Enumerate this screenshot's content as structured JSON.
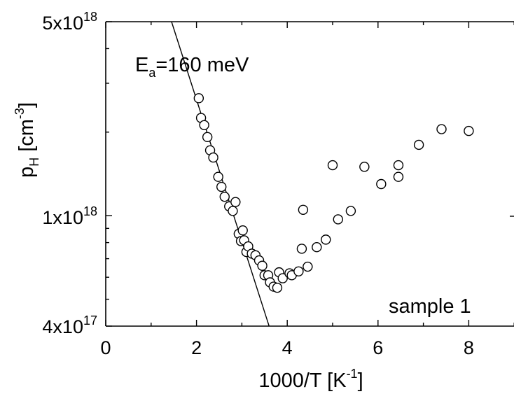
{
  "chart_data": {
    "type": "scatter",
    "title": "",
    "xlabel": {
      "main": "1000/T [K",
      "sup": "-1",
      "close": "]"
    },
    "ylabel": {
      "main": "p",
      "sub": "H",
      "rest": " [cm",
      "sup": "-3",
      "close": "]"
    },
    "x_scale": "linear",
    "y_scale": "log",
    "xlim": [
      0,
      9
    ],
    "ylim": [
      4e+17,
      5e+18
    ],
    "x_ticks": [
      "0",
      "2",
      "4",
      "6",
      "8"
    ],
    "y_ticks": [
      {
        "value": 5e+18,
        "mant": "5x10",
        "exp": "18"
      },
      {
        "value": 1e+18,
        "mant": "1x10",
        "exp": "18"
      },
      {
        "value": 4e+17,
        "mant": "4x10",
        "exp": "17"
      }
    ],
    "series": [
      {
        "marker": "open-circle",
        "points": [
          [
            2.05,
            2.65e+18
          ],
          [
            2.1,
            2.25e+18
          ],
          [
            2.17,
            2.12e+18
          ],
          [
            2.24,
            1.92e+18
          ],
          [
            2.3,
            1.72e+18
          ],
          [
            2.37,
            1.62e+18
          ],
          [
            2.48,
            1.38e+18
          ],
          [
            2.55,
            1.27e+18
          ],
          [
            2.62,
            1.17e+18
          ],
          [
            2.72,
            1.08e+18
          ],
          [
            2.8,
            1.04e+18
          ],
          [
            2.86,
            1.12e+18
          ],
          [
            2.93,
            8.6e+17
          ],
          [
            2.98,
            8.1e+17
          ],
          [
            3.02,
            8.85e+17
          ],
          [
            3.05,
            8.15e+17
          ],
          [
            3.1,
            7.4e+17
          ],
          [
            3.14,
            7.75e+17
          ],
          [
            3.22,
            7.3e+17
          ],
          [
            3.3,
            7.2e+17
          ],
          [
            3.38,
            6.9e+17
          ],
          [
            3.45,
            6.6e+17
          ],
          [
            3.5,
            6.1e+17
          ],
          [
            3.58,
            6.1e+17
          ],
          [
            3.62,
            5.75e+17
          ],
          [
            3.7,
            5.55e+17
          ],
          [
            3.78,
            5.5e+17
          ],
          [
            3.82,
            6.25e+17
          ],
          [
            3.9,
            5.95e+17
          ],
          [
            4.05,
            6.2e+17
          ],
          [
            4.1,
            6.1e+17
          ],
          [
            4.25,
            6.3e+17
          ],
          [
            4.32,
            7.6e+17
          ],
          [
            4.45,
            6.55e+17
          ],
          [
            4.35,
            1.05e+18
          ],
          [
            4.65,
            7.7e+17
          ],
          [
            4.85,
            8.2e+17
          ],
          [
            5.0,
            1.52e+18
          ],
          [
            5.12,
            9.7e+17
          ],
          [
            5.4,
            1.04e+18
          ],
          [
            5.7,
            1.5e+18
          ],
          [
            6.07,
            1.3e+18
          ],
          [
            6.45,
            1.38e+18
          ],
          [
            6.45,
            1.52e+18
          ],
          [
            6.9,
            1.8e+18
          ],
          [
            7.4,
            2.05e+18
          ],
          [
            8.0,
            2.02e+18
          ]
        ]
      }
    ],
    "fit_line": {
      "label_main": "E",
      "label_sub": "a",
      "label_rest": "=160 meV",
      "x": [
        1.45,
        3.6
      ],
      "y": [
        5e+18,
        4e+17
      ]
    },
    "annotation": "sample 1"
  }
}
